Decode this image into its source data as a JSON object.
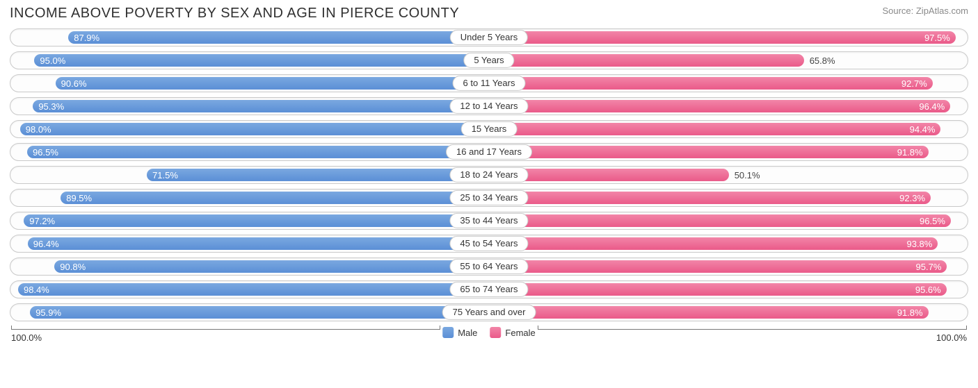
{
  "title": "INCOME ABOVE POVERTY BY SEX AND AGE IN PIERCE COUNTY",
  "source": "Source: ZipAtlas.com",
  "chart": {
    "type": "diverging-bar",
    "max_scale": 100.0,
    "axis_left_label": "100.0%",
    "axis_right_label": "100.0%",
    "colors": {
      "male": "#5b8fd6",
      "male_light": "#7aa8e0",
      "female": "#ea5a89",
      "female_light": "#f285a8",
      "border": "#c9c9c9",
      "background": "#ffffff",
      "text": "#333333",
      "title_text": "#303030",
      "source_text": "#8a8a8a"
    },
    "typography": {
      "title_fontsize": 20,
      "label_fontsize": 13,
      "value_fontsize": 13
    },
    "rows": [
      {
        "category": "Under 5 Years",
        "male": 87.9,
        "female": 97.5,
        "female_label_outside": false
      },
      {
        "category": "5 Years",
        "male": 95.0,
        "female": 65.8,
        "female_label_outside": true
      },
      {
        "category": "6 to 11 Years",
        "male": 90.6,
        "female": 92.7,
        "female_label_outside": false
      },
      {
        "category": "12 to 14 Years",
        "male": 95.3,
        "female": 96.4,
        "female_label_outside": false
      },
      {
        "category": "15 Years",
        "male": 98.0,
        "female": 94.4,
        "female_label_outside": false
      },
      {
        "category": "16 and 17 Years",
        "male": 96.5,
        "female": 91.8,
        "female_label_outside": false
      },
      {
        "category": "18 to 24 Years",
        "male": 71.5,
        "female": 50.1,
        "female_label_outside": true
      },
      {
        "category": "25 to 34 Years",
        "male": 89.5,
        "female": 92.3,
        "female_label_outside": false
      },
      {
        "category": "35 to 44 Years",
        "male": 97.2,
        "female": 96.5,
        "female_label_outside": false
      },
      {
        "category": "45 to 54 Years",
        "male": 96.4,
        "female": 93.8,
        "female_label_outside": false
      },
      {
        "category": "55 to 64 Years",
        "male": 90.8,
        "female": 95.7,
        "female_label_outside": false
      },
      {
        "category": "65 to 74 Years",
        "male": 98.4,
        "female": 95.6,
        "female_label_outside": false
      },
      {
        "category": "75 Years and over",
        "male": 95.9,
        "female": 91.8,
        "female_label_outside": false
      }
    ],
    "legend": {
      "male": "Male",
      "female": "Female"
    }
  }
}
